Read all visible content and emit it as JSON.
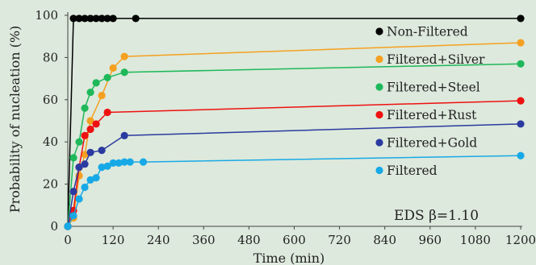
{
  "chart_data": {
    "type": "line",
    "title": "",
    "xlabel": "Time (min)",
    "ylabel": "Probability of nucleation (%)",
    "xlim": [
      0,
      1200
    ],
    "ylim": [
      0,
      100
    ],
    "x_ticks": [
      0,
      120,
      240,
      360,
      480,
      600,
      720,
      840,
      960,
      1080,
      1200
    ],
    "y_ticks": [
      0,
      20,
      40,
      60,
      80,
      100
    ],
    "grid": false,
    "legend_position": "right",
    "annotation": "EDS β=1.10",
    "series": [
      {
        "name": "Non-Filtered",
        "color": "#000000",
        "points": [
          [
            0,
            0
          ],
          [
            15,
            98.5
          ],
          [
            30,
            98.5
          ],
          [
            45,
            98.5
          ],
          [
            60,
            98.5
          ],
          [
            75,
            98.5
          ],
          [
            90,
            98.5
          ],
          [
            105,
            98.5
          ],
          [
            120,
            98.5
          ],
          [
            180,
            98.5
          ],
          [
            1200,
            98.5
          ]
        ]
      },
      {
        "name": "Filtered+Silver",
        "color": "#f5a021",
        "points": [
          [
            0,
            0
          ],
          [
            15,
            4
          ],
          [
            30,
            24
          ],
          [
            45,
            34
          ],
          [
            60,
            50
          ],
          [
            90,
            62
          ],
          [
            120,
            75
          ],
          [
            150,
            80.5
          ],
          [
            1200,
            87
          ]
        ]
      },
      {
        "name": "Filtered+Steel",
        "color": "#1eb85a",
        "points": [
          [
            0,
            0
          ],
          [
            15,
            32.5
          ],
          [
            30,
            40
          ],
          [
            45,
            56
          ],
          [
            60,
            63.5
          ],
          [
            75,
            68
          ],
          [
            105,
            70.5
          ],
          [
            150,
            73
          ],
          [
            1200,
            77
          ]
        ]
      },
      {
        "name": "Filtered+Rust",
        "color": "#ee1111",
        "points": [
          [
            0,
            0
          ],
          [
            15,
            7.5
          ],
          [
            30,
            28
          ],
          [
            45,
            43
          ],
          [
            60,
            46
          ],
          [
            75,
            48.5
          ],
          [
            105,
            54
          ],
          [
            1200,
            59.5
          ]
        ]
      },
      {
        "name": "Filtered+Gold",
        "color": "#2b3aa0",
        "points": [
          [
            0,
            0
          ],
          [
            15,
            16.5
          ],
          [
            30,
            28
          ],
          [
            45,
            29.5
          ],
          [
            60,
            35
          ],
          [
            90,
            36
          ],
          [
            150,
            43
          ],
          [
            1200,
            48.5
          ]
        ]
      },
      {
        "name": "Filtered",
        "color": "#17a9e6",
        "points": [
          [
            0,
            0
          ],
          [
            15,
            5
          ],
          [
            30,
            13
          ],
          [
            45,
            18.5
          ],
          [
            60,
            22
          ],
          [
            75,
            23
          ],
          [
            90,
            28
          ],
          [
            105,
            28.5
          ],
          [
            120,
            30
          ],
          [
            135,
            30
          ],
          [
            150,
            30.5
          ],
          [
            165,
            30.5
          ],
          [
            200,
            30.5
          ],
          [
            1200,
            33.5
          ]
        ]
      }
    ]
  }
}
